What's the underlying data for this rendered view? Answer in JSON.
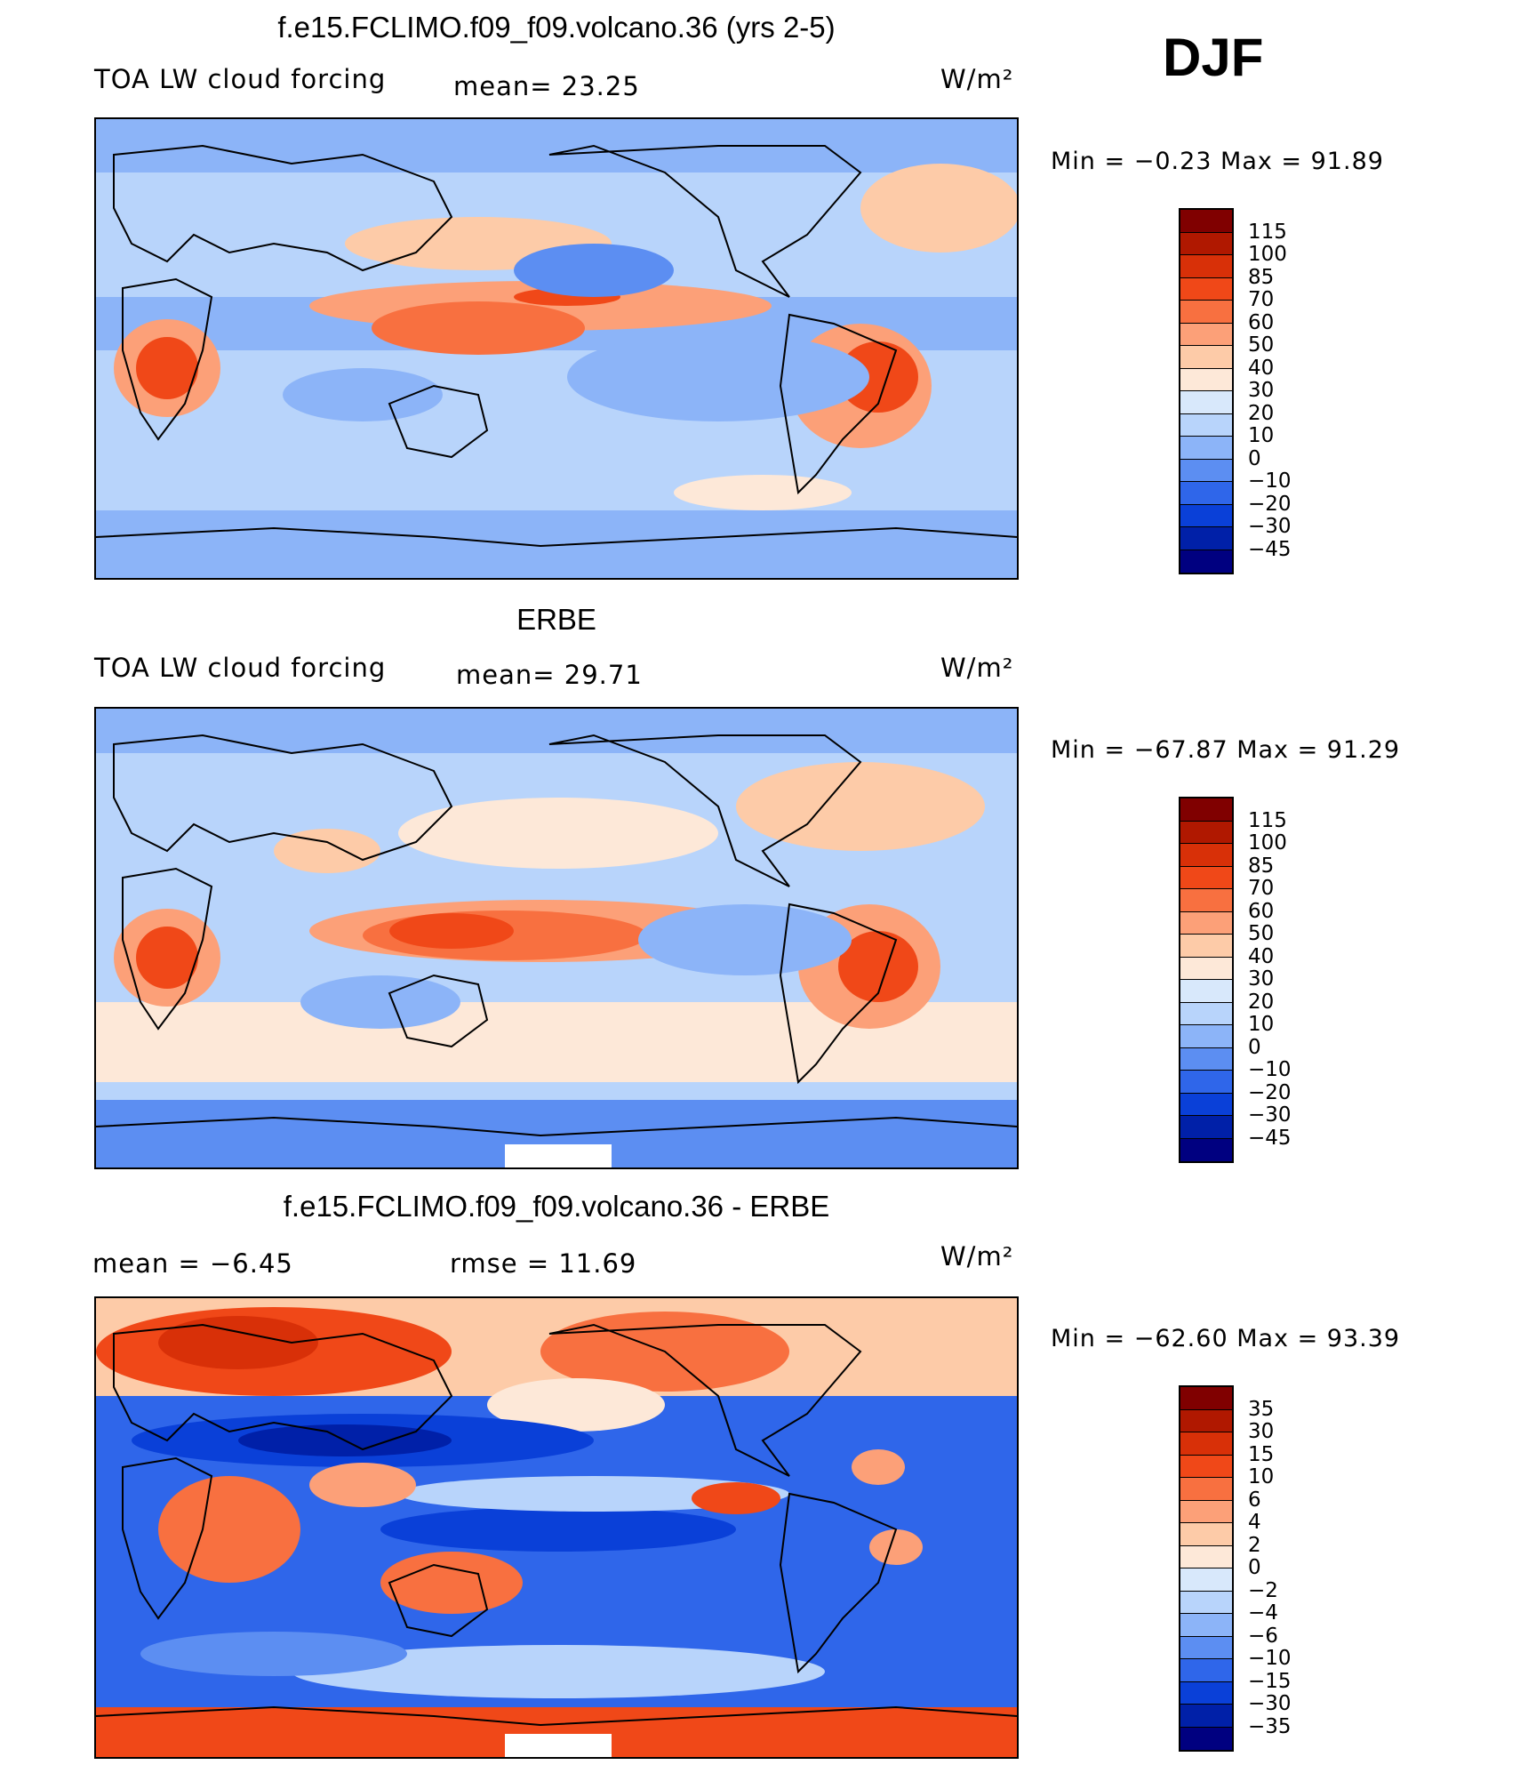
{
  "season": "DJF",
  "units": "W/m²",
  "panels": [
    {
      "id": "model",
      "title": "f.e15.FCLIMO.f09_f09.volcano.36 (yrs 2-5)",
      "left_label": "TOA LW cloud forcing",
      "mid_label": "mean=   23.25",
      "units": "W/m²",
      "minmax": "Min  =   −0.23  Max  =    91.89",
      "colorbar_labels": [
        "115",
        "100",
        "85",
        "70",
        "60",
        "50",
        "40",
        "30",
        "20",
        "10",
        "0",
        "−10",
        "−20",
        "−30",
        "−45"
      ]
    },
    {
      "id": "obs",
      "title": "ERBE",
      "left_label": "TOA LW cloud forcing",
      "mid_label": "mean=   29.71",
      "units": "W/m²",
      "minmax": "Min  = −67.87  Max  =    91.29",
      "colorbar_labels": [
        "115",
        "100",
        "85",
        "70",
        "60",
        "50",
        "40",
        "30",
        "20",
        "10",
        "0",
        "−10",
        "−20",
        "−30",
        "−45"
      ]
    },
    {
      "id": "diff",
      "title": "f.e15.FCLIMO.f09_f09.volcano.36 - ERBE",
      "left_label": "mean  =    −6.45",
      "mid_label": "rmse  =    11.69",
      "units": "W/m²",
      "minmax": "Min  = −62.60  Max  =    93.39",
      "colorbar_labels": [
        "35",
        "30",
        "15",
        "10",
        "6",
        "4",
        "2",
        "0",
        "−2",
        "−4",
        "−6",
        "−10",
        "−15",
        "−30",
        "−35"
      ]
    }
  ],
  "colorbar_colors": [
    "#800000",
    "#b01800",
    "#d83008",
    "#f04818",
    "#f87040",
    "#fca078",
    "#fdcba8",
    "#fde8d8",
    "#d8e8fb",
    "#b8d4fb",
    "#8cb4f8",
    "#5c8ef2",
    "#2f66ea",
    "#0a40d8",
    "#0020a8",
    "#000080"
  ],
  "chart_data": {
    "type": "heatmap",
    "colorbar_model_obs": [
      "115",
      "100",
      "85",
      "70",
      "60",
      "50",
      "40",
      "30",
      "20",
      "10",
      "0",
      "−10",
      "−20",
      "−30",
      "−45"
    ],
    "colorbar_diff": [
      "35",
      "30",
      "15",
      "10",
      "6",
      "4",
      "2",
      "0",
      "−2",
      "−4",
      "−6",
      "−10",
      "−15",
      "−30",
      "−35"
    ]
  }
}
